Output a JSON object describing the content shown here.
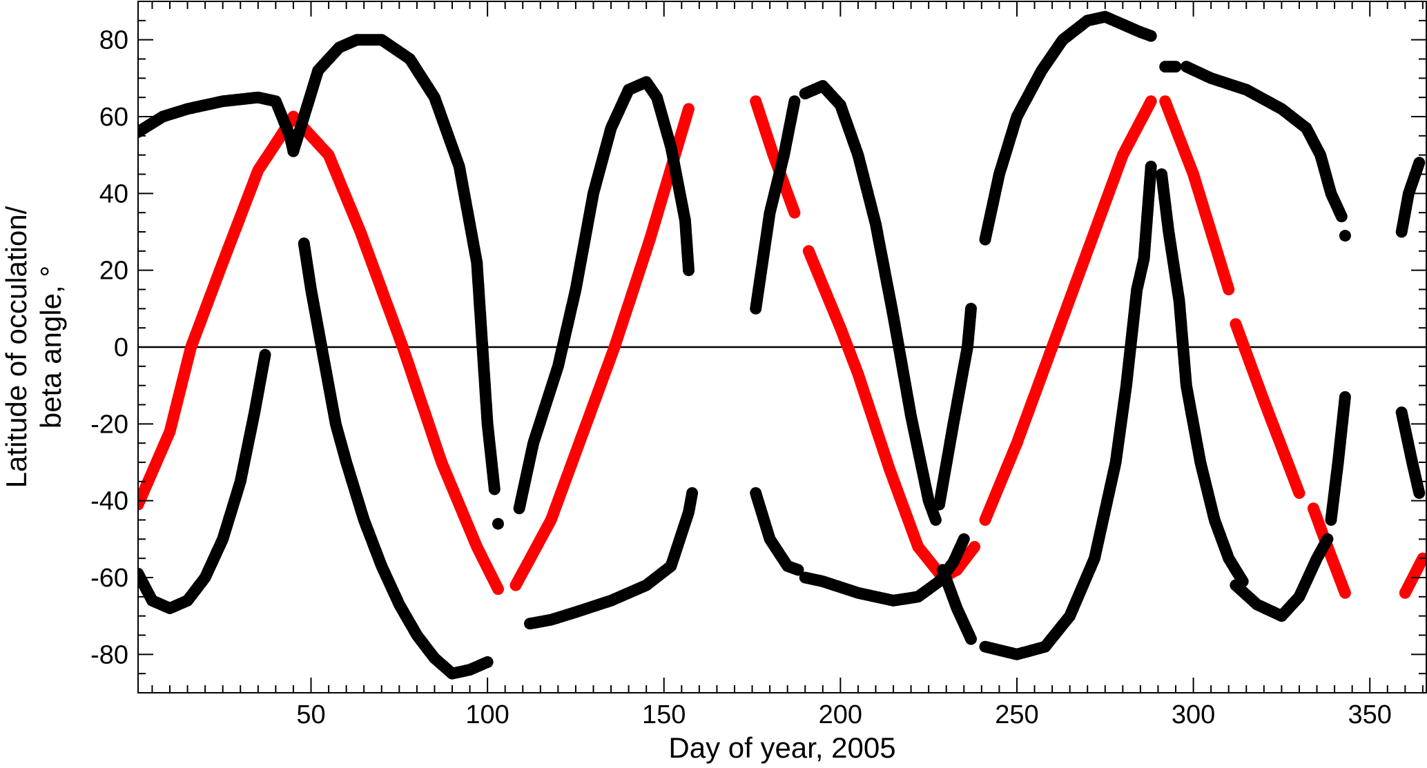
{
  "chart_data": {
    "type": "scatter",
    "title": "",
    "xlabel": "Day of year, 2005",
    "ylabel_line1": "Latitude of occulation/",
    "ylabel_line2": "beta angle, °",
    "xlim": [
      1,
      366
    ],
    "ylim": [
      -90,
      90
    ],
    "x_ticks": [
      50,
      100,
      150,
      200,
      250,
      300,
      350
    ],
    "y_ticks": [
      -80,
      -60,
      -40,
      -20,
      0,
      20,
      40,
      60,
      80
    ],
    "x_tick_labels": [
      "50",
      "100",
      "150",
      "200",
      "250",
      "300",
      "350"
    ],
    "y_tick_labels": [
      "-80",
      "-60",
      "-40",
      "-20",
      "0",
      "20",
      "40",
      "60",
      "80"
    ],
    "x_minor_step": 5,
    "y_minor_step": 5,
    "zero_line": true,
    "grid": false,
    "legend": "none",
    "colors": {
      "beta_angle": "#ff0000",
      "occultation_latitude": "#000000",
      "axes": "#000000"
    },
    "series": [
      {
        "color_key": "beta_angle",
        "segments": [
          [
            [
              1,
              -41
            ],
            [
              10,
              -22
            ],
            [
              16,
              0
            ],
            [
              25,
              22
            ],
            [
              35,
              46
            ],
            [
              45,
              60
            ],
            [
              55,
              50
            ],
            [
              64,
              30
            ],
            [
              76,
              0
            ],
            [
              87,
              -30
            ],
            [
              97,
              -52
            ],
            [
              103,
              -63
            ]
          ],
          [
            [
              108,
              -62
            ],
            [
              118,
              -45
            ],
            [
              126,
              -25
            ],
            [
              136,
              0
            ],
            [
              146,
              28
            ],
            [
              157,
              62
            ]
          ],
          [
            [
              176,
              64
            ],
            [
              181,
              50
            ],
            [
              187,
              35
            ]
          ],
          [
            [
              191,
              25
            ],
            [
              200,
              5
            ],
            [
              205,
              -7
            ],
            [
              214,
              -32
            ],
            [
              222,
              -52
            ],
            [
              229,
              -60
            ],
            [
              233,
              -58
            ],
            [
              238,
              -52
            ]
          ],
          [
            [
              241,
              -45
            ],
            [
              250,
              -25
            ],
            [
              260,
              0
            ],
            [
              270,
              25
            ],
            [
              280,
              50
            ],
            [
              288,
              64
            ]
          ],
          [
            [
              292,
              64
            ],
            [
              300,
              45
            ],
            [
              310,
              15
            ]
          ],
          [
            [
              312,
              6
            ],
            [
              320,
              -14
            ],
            [
              330,
              -38
            ]
          ],
          [
            [
              334,
              -42
            ],
            [
              338,
              -52
            ],
            [
              343,
              -64
            ]
          ],
          [
            [
              360,
              -64
            ],
            [
              365,
              -55
            ]
          ]
        ]
      },
      {
        "color_key": "occultation_latitude",
        "segments": [
          [
            [
              1,
              56
            ],
            [
              8,
              60
            ],
            [
              15,
              62
            ],
            [
              25,
              64
            ],
            [
              35,
              65
            ],
            [
              40,
              64
            ],
            [
              44,
              55
            ],
            [
              45,
              51
            ]
          ],
          [
            [
              45,
              51
            ],
            [
              48,
              60
            ],
            [
              52,
              72
            ],
            [
              58,
              78
            ],
            [
              63,
              80
            ],
            [
              70,
              80
            ],
            [
              78,
              75
            ],
            [
              85,
              65
            ],
            [
              92,
              47
            ],
            [
              97,
              22
            ],
            [
              100,
              -20
            ],
            [
              102,
              -37
            ]
          ],
          [
            [
              48,
              27
            ],
            [
              50,
              15
            ],
            [
              54,
              -5
            ],
            [
              57,
              -20
            ],
            [
              60,
              -30
            ],
            [
              65,
              -45
            ],
            [
              70,
              -57
            ],
            [
              75,
              -67
            ],
            [
              80,
              -75
            ],
            [
              85,
              -81
            ],
            [
              90,
              -85
            ],
            [
              95,
              -84
            ],
            [
              100,
              -82
            ]
          ],
          [
            [
              1,
              -59
            ],
            [
              5,
              -66
            ],
            [
              10,
              -68
            ],
            [
              15,
              -66
            ],
            [
              20,
              -60
            ],
            [
              25,
              -50
            ],
            [
              30,
              -35
            ],
            [
              34,
              -17
            ],
            [
              37,
              -2
            ]
          ],
          [
            [
              103,
              -46
            ]
          ],
          [
            [
              109,
              -42
            ],
            [
              113,
              -25
            ],
            [
              120,
              -5
            ],
            [
              125,
              15
            ],
            [
              130,
              40
            ],
            [
              135,
              57
            ],
            [
              140,
              67
            ],
            [
              145,
              69
            ],
            [
              148,
              65
            ],
            [
              152,
              52
            ],
            [
              156,
              33
            ],
            [
              157,
              20
            ]
          ],
          [
            [
              112,
              -72
            ],
            [
              118,
              -71
            ],
            [
              125,
              -69
            ],
            [
              135,
              -66
            ],
            [
              145,
              -62
            ],
            [
              152,
              -57
            ],
            [
              157,
              -43
            ],
            [
              158,
              -38
            ]
          ],
          [
            [
              176,
              10
            ],
            [
              180,
              35
            ],
            [
              184,
              50
            ],
            [
              187,
              64
            ]
          ],
          [
            [
              176,
              -38
            ],
            [
              180,
              -50
            ],
            [
              185,
              -57
            ],
            [
              188,
              -58
            ]
          ],
          [
            [
              190,
              -60
            ],
            [
              195,
              -61
            ],
            [
              205,
              -64
            ],
            [
              215,
              -66
            ],
            [
              222,
              -65
            ],
            [
              228,
              -61
            ],
            [
              232,
              -56
            ],
            [
              235,
              -50
            ]
          ],
          [
            [
              190,
              66
            ],
            [
              195,
              68
            ],
            [
              200,
              63
            ],
            [
              205,
              50
            ],
            [
              210,
              32
            ],
            [
              215,
              8
            ],
            [
              220,
              -18
            ],
            [
              225,
              -40
            ],
            [
              227,
              -45
            ]
          ],
          [
            [
              228,
              -41
            ],
            [
              232,
              -20
            ],
            [
              236,
              0
            ],
            [
              237,
              10
            ]
          ],
          [
            [
              229,
              -58
            ],
            [
              233,
              -68
            ],
            [
              237,
              -76
            ]
          ],
          [
            [
              241,
              -78
            ],
            [
              250,
              -80
            ],
            [
              258,
              -78
            ],
            [
              265,
              -70
            ],
            [
              272,
              -55
            ],
            [
              278,
              -30
            ],
            [
              281,
              -10
            ],
            [
              284,
              15
            ],
            [
              286,
              23
            ],
            [
              288,
              47
            ]
          ],
          [
            [
              241,
              28
            ],
            [
              245,
              45
            ],
            [
              250,
              60
            ],
            [
              257,
              72
            ],
            [
              263,
              80
            ],
            [
              270,
              85
            ],
            [
              275,
              86
            ],
            [
              280,
              84
            ],
            [
              285,
              82
            ],
            [
              288,
              81
            ]
          ],
          [
            [
              291,
              45
            ],
            [
              293,
              30
            ],
            [
              296,
              12
            ],
            [
              298,
              -10
            ],
            [
              302,
              -30
            ],
            [
              306,
              -45
            ],
            [
              310,
              -55
            ],
            [
              314,
              -61
            ]
          ],
          [
            [
              292,
              73
            ],
            [
              295,
              73
            ]
          ],
          [
            [
              298,
              73
            ],
            [
              305,
              70
            ],
            [
              315,
              67
            ],
            [
              325,
              62
            ],
            [
              332,
              57
            ],
            [
              336,
              50
            ],
            [
              339,
              40
            ],
            [
              342,
              34
            ]
          ],
          [
            [
              312,
              -62
            ],
            [
              318,
              -67
            ],
            [
              325,
              -70
            ],
            [
              330,
              -65
            ],
            [
              335,
              -55
            ],
            [
              338,
              -50
            ]
          ],
          [
            [
              339,
              -45
            ],
            [
              341,
              -30
            ],
            [
              343,
              -13
            ]
          ],
          [
            [
              343,
              29
            ]
          ],
          [
            [
              359,
              30
            ],
            [
              361,
              40
            ],
            [
              364,
              48
            ]
          ],
          [
            [
              359,
              -17
            ],
            [
              362,
              -30
            ],
            [
              364,
              -38
            ]
          ]
        ]
      }
    ]
  }
}
